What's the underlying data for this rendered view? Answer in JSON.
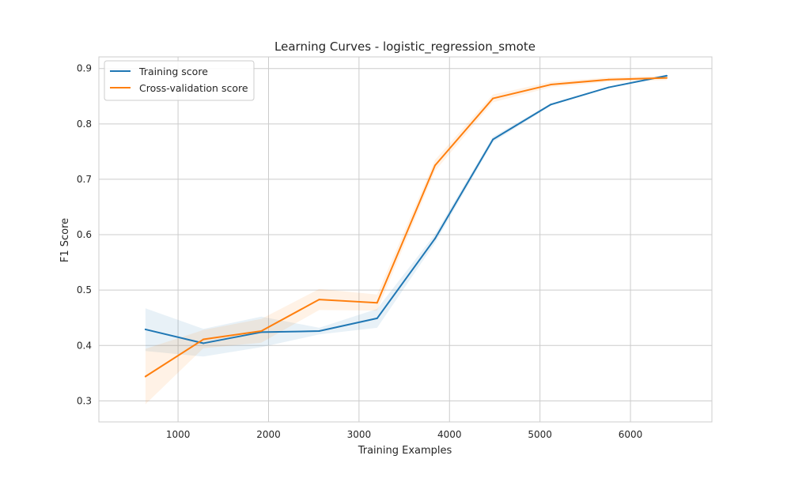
{
  "chart_data": {
    "type": "line",
    "title": "Learning Curves - logistic_regression_smote",
    "xlabel": "Training Examples",
    "ylabel": "F1 Score",
    "xlim": [
      125,
      6900
    ],
    "ylim": [
      0.262,
      0.921
    ],
    "xticks": [
      1000,
      2000,
      3000,
      4000,
      5000,
      6000
    ],
    "yticks": [
      0.3,
      0.4,
      0.5,
      0.6,
      0.7,
      0.8,
      0.9
    ],
    "grid": true,
    "legend": "upper-left",
    "x": [
      640,
      1280,
      1920,
      2560,
      3200,
      3840,
      4480,
      5120,
      5760,
      6400
    ],
    "series": [
      {
        "name": "Training score",
        "color": "#1f77b4",
        "values": [
          0.429,
          0.404,
          0.424,
          0.426,
          0.449,
          0.593,
          0.772,
          0.835,
          0.866,
          0.887
        ],
        "lower": [
          0.39,
          0.38,
          0.397,
          0.42,
          0.432,
          0.585,
          0.767,
          0.833,
          0.865,
          0.885
        ],
        "upper": [
          0.467,
          0.43,
          0.452,
          0.432,
          0.466,
          0.601,
          0.777,
          0.837,
          0.867,
          0.889
        ]
      },
      {
        "name": "Cross-validation score",
        "color": "#ff7f0e",
        "values": [
          0.344,
          0.411,
          0.426,
          0.483,
          0.477,
          0.725,
          0.846,
          0.871,
          0.88,
          0.883
        ],
        "lower": [
          0.294,
          0.395,
          0.405,
          0.464,
          0.463,
          0.715,
          0.839,
          0.866,
          0.876,
          0.879
        ],
        "upper": [
          0.394,
          0.428,
          0.448,
          0.502,
          0.492,
          0.735,
          0.853,
          0.876,
          0.884,
          0.887
        ]
      }
    ]
  }
}
